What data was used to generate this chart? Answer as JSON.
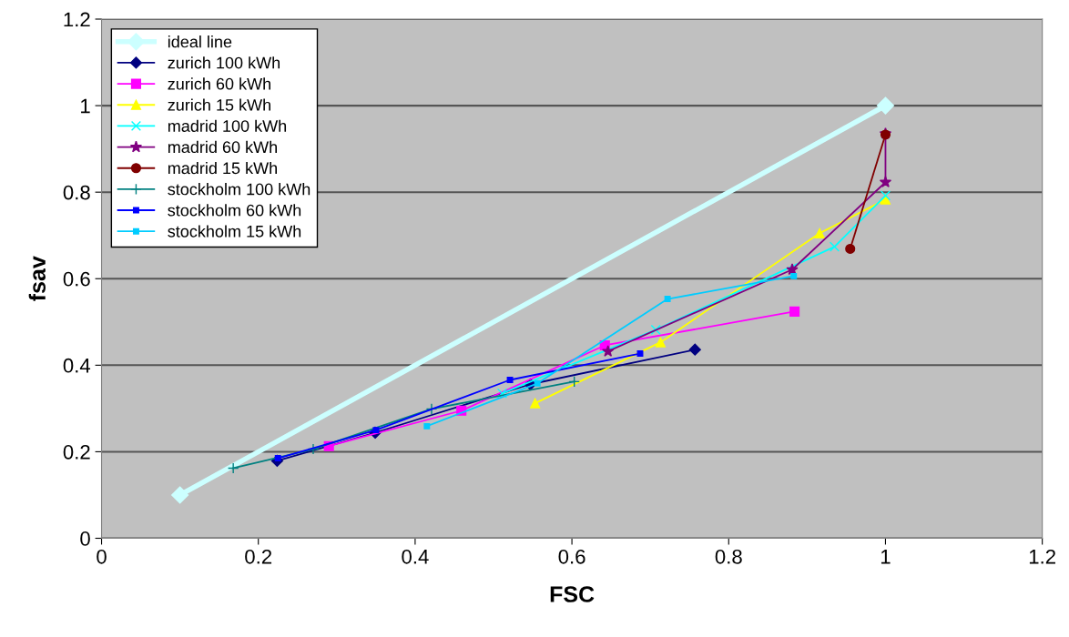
{
  "chart_data": {
    "type": "line",
    "xlabel": "FSC",
    "ylabel": "fsav",
    "xlim": [
      0,
      1.2
    ],
    "ylim": [
      0,
      1.2
    ],
    "xticks": [
      0,
      0.2,
      0.4,
      0.6,
      0.8,
      1,
      1.2
    ],
    "yticks": [
      0,
      0.2,
      0.4,
      0.6,
      0.8,
      1,
      1.2
    ],
    "grid": "y",
    "legend": "top left",
    "series": [
      {
        "name": "ideal line",
        "color": "#ccffff",
        "marker": "diamond",
        "x": [
          0.1,
          1
        ],
        "values": [
          0.1,
          1
        ]
      },
      {
        "name": "zurich 100 kWh",
        "color": "#000080",
        "marker": "diamond",
        "x": [
          0.224,
          0.349,
          0.547,
          0.757
        ],
        "values": [
          0.179,
          0.244,
          0.356,
          0.436
        ]
      },
      {
        "name": "zurich 60 kWh",
        "color": "#ff00ff",
        "marker": "square",
        "x": [
          0.29,
          0.459,
          0.642,
          0.884
        ],
        "values": [
          0.213,
          0.295,
          0.446,
          0.524
        ]
      },
      {
        "name": "zurich 15 kWh",
        "color": "#ffff00",
        "marker": "triangle",
        "x": [
          0.553,
          0.713,
          0.916,
          1.0
        ],
        "values": [
          0.312,
          0.453,
          0.705,
          0.783
        ]
      },
      {
        "name": "madrid 100 kWh",
        "color": "#00ffff",
        "marker": "cross",
        "x": [
          0.511,
          0.707,
          0.935,
          1.0
        ],
        "values": [
          0.335,
          0.482,
          0.674,
          0.792
        ]
      },
      {
        "name": "madrid 60 kWh",
        "color": "#800080",
        "marker": "star",
        "x": [
          0.646,
          0.881,
          1.0,
          1.0
        ],
        "values": [
          0.432,
          0.621,
          0.823,
          0.935
        ]
      },
      {
        "name": "madrid 15 kWh",
        "color": "#800000",
        "marker": "circle",
        "x": [
          0.955,
          1.0
        ],
        "values": [
          0.669,
          0.933
        ]
      },
      {
        "name": "stockholm 100 kWh",
        "color": "#008080",
        "marker": "plus",
        "x": [
          0.168,
          0.27,
          0.421,
          0.603
        ],
        "values": [
          0.162,
          0.206,
          0.299,
          0.362
        ]
      },
      {
        "name": "stockholm 60 kWh",
        "color": "#0000ff",
        "marker": "square",
        "x": [
          0.225,
          0.35,
          0.521,
          0.687
        ],
        "values": [
          0.185,
          0.25,
          0.366,
          0.427
        ]
      },
      {
        "name": "stockholm 15 kWh",
        "color": "#00ccff",
        "marker": "square",
        "x": [
          0.415,
          0.556,
          0.722,
          0.883
        ],
        "values": [
          0.259,
          0.358,
          0.553,
          0.606
        ]
      }
    ]
  }
}
